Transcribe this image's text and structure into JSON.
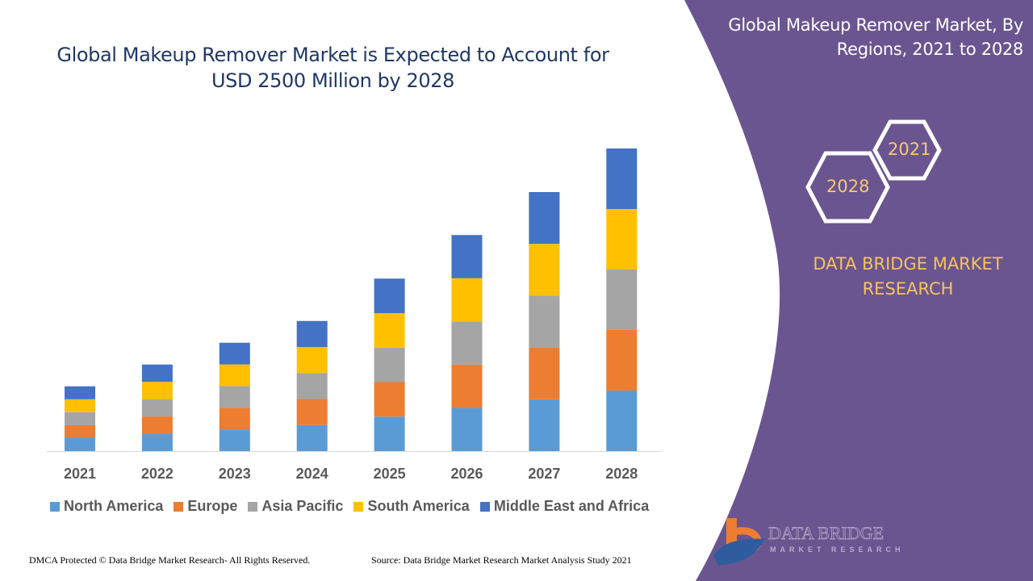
{
  "header": {
    "title": "Global Makeup Remover Market is Expected to Account for USD 2500 Million by 2028"
  },
  "side_panel": {
    "title": "Global Makeup Remover Market, By Regions, 2021 to 2028",
    "hex_year_start": "2021",
    "hex_year_end": "2028",
    "brand": "DATA BRIDGE MARKET RESEARCH",
    "logo_text": "DATA BRIDGE",
    "logo_subtext": "MARKET RESEARCH",
    "panel_color": "#6a5590"
  },
  "footer": {
    "left": "DMCA Protected © Data Bridge Market Research- All Rights Reserved.",
    "right": "Source: Data Bridge Market Research Market Analysis Study 2021"
  },
  "chart_data": {
    "type": "bar",
    "stacked": true,
    "title": "Global Makeup Remover Market is Expected to Account for USD 2500 Million by 2028",
    "xlabel": "",
    "ylabel": "",
    "y_axis_visible": false,
    "grid": false,
    "legend_placement": "bottom",
    "categories": [
      "2021",
      "2022",
      "2023",
      "2024",
      "2025",
      "2026",
      "2027",
      "2028"
    ],
    "series": [
      {
        "name": "North America",
        "color": "#5b9bd5",
        "values": [
          107,
          143,
          179,
          215,
          285,
          357,
          428,
          500
        ]
      },
      {
        "name": "Europe",
        "color": "#ed7d31",
        "values": [
          107,
          143,
          179,
          215,
          285,
          357,
          428,
          500
        ]
      },
      {
        "name": "Asia Pacific",
        "color": "#a5a5a5",
        "values": [
          107,
          143,
          179,
          215,
          285,
          357,
          428,
          500
        ]
      },
      {
        "name": "South America",
        "color": "#ffc000",
        "values": [
          107,
          143,
          179,
          215,
          285,
          357,
          428,
          500
        ]
      },
      {
        "name": "Middle East and Africa",
        "color": "#4472c4",
        "values": [
          107,
          143,
          179,
          215,
          285,
          357,
          428,
          500
        ]
      }
    ]
  }
}
